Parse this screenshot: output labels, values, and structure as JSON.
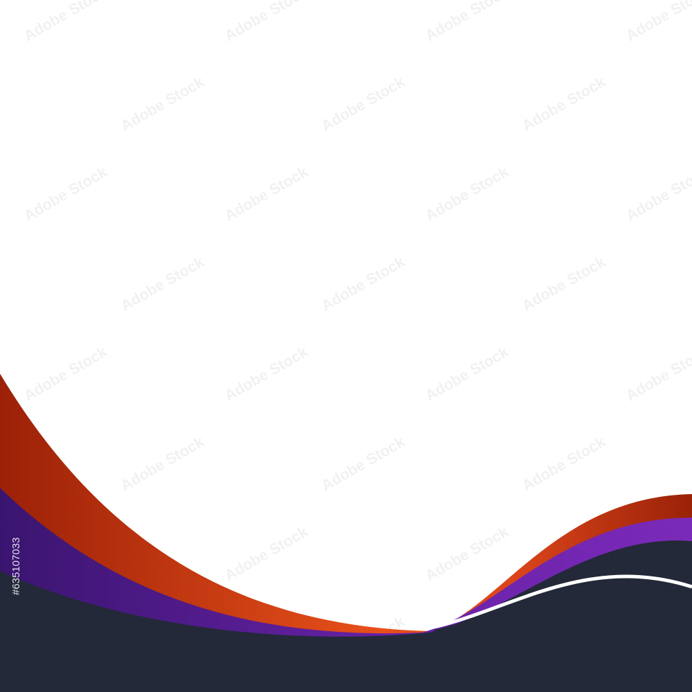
{
  "image": {
    "watermark": "Adobe Stock",
    "stock_id": "#635107033"
  }
}
